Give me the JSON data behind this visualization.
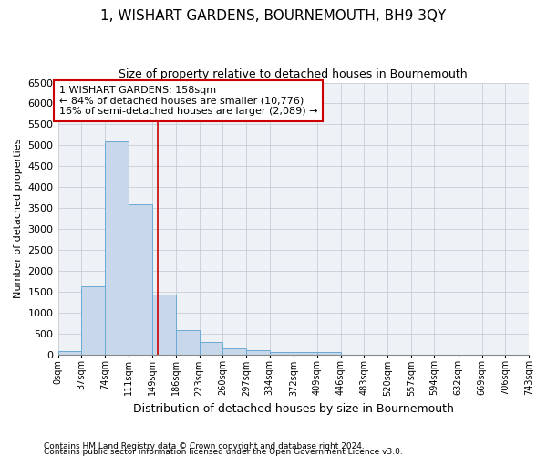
{
  "title": "1, WISHART GARDENS, BOURNEMOUTH, BH9 3QY",
  "subtitle": "Size of property relative to detached houses in Bournemouth",
  "xlabel": "Distribution of detached houses by size in Bournemouth",
  "ylabel": "Number of detached properties",
  "footnote1": "Contains HM Land Registry data © Crown copyright and database right 2024.",
  "footnote2": "Contains public sector information licensed under the Open Government Licence v3.0.",
  "annotation_line1": "1 WISHART GARDENS: 158sqm",
  "annotation_line2": "← 84% of detached houses are smaller (10,776)",
  "annotation_line3": "16% of semi-detached houses are larger (2,089) →",
  "property_size": 158,
  "bar_color": "#c8d8ea",
  "bar_edge_color": "#6aaad4",
  "red_line_color": "#cc0000",
  "annotation_box_color": "#cc0000",
  "background_color": "#eef2f7",
  "grid_color": "#c8cdd4",
  "bins": [
    0,
    37,
    74,
    111,
    149,
    186,
    223,
    260,
    297,
    334,
    372,
    409,
    446,
    483,
    520,
    557,
    594,
    632,
    669,
    706,
    743
  ],
  "bin_labels": [
    "0sqm",
    "37sqm",
    "74sqm",
    "111sqm",
    "149sqm",
    "186sqm",
    "223sqm",
    "260sqm",
    "297sqm",
    "334sqm",
    "372sqm",
    "409sqm",
    "446sqm",
    "483sqm",
    "520sqm",
    "557sqm",
    "594sqm",
    "632sqm",
    "669sqm",
    "706sqm",
    "743sqm"
  ],
  "counts": [
    75,
    1630,
    5090,
    3580,
    1420,
    580,
    295,
    145,
    95,
    65,
    50,
    50,
    0,
    0,
    0,
    0,
    0,
    0,
    0,
    0
  ],
  "ylim": [
    0,
    6500
  ],
  "yticks": [
    0,
    500,
    1000,
    1500,
    2000,
    2500,
    3000,
    3500,
    4000,
    4500,
    5000,
    5500,
    6000,
    6500
  ]
}
